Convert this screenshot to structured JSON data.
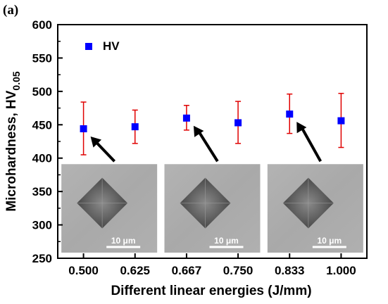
{
  "panel_label": "(a)",
  "chart_data": {
    "type": "scatter",
    "title": "",
    "xlabel": "Different linear energies (J/mm)",
    "ylabel_main": "Microhardness, HV",
    "ylabel_subscript": "0.05",
    "categories": [
      "0.500",
      "0.625",
      "0.667",
      "0.750",
      "0.833",
      "1.000"
    ],
    "ylim": [
      250,
      600
    ],
    "yticks": [
      250,
      300,
      350,
      400,
      450,
      500,
      550,
      600
    ],
    "grid": false,
    "legend": {
      "position": "top-left",
      "entries": [
        "HV"
      ]
    },
    "series": [
      {
        "name": "HV",
        "color": "#0000ff",
        "error_color": "#e00000",
        "values": [
          444,
          447,
          460,
          453,
          466,
          456
        ],
        "error_low": [
          405,
          422,
          442,
          422,
          437,
          416
        ],
        "error_high": [
          484,
          472,
          479,
          485,
          496,
          497
        ]
      }
    ],
    "insets": [
      {
        "scale_label": "10 μm",
        "arrow_to": "0.500"
      },
      {
        "scale_label": "10 μm",
        "arrow_to": "0.667"
      },
      {
        "scale_label": "10 μm",
        "arrow_to": "0.833"
      }
    ]
  }
}
